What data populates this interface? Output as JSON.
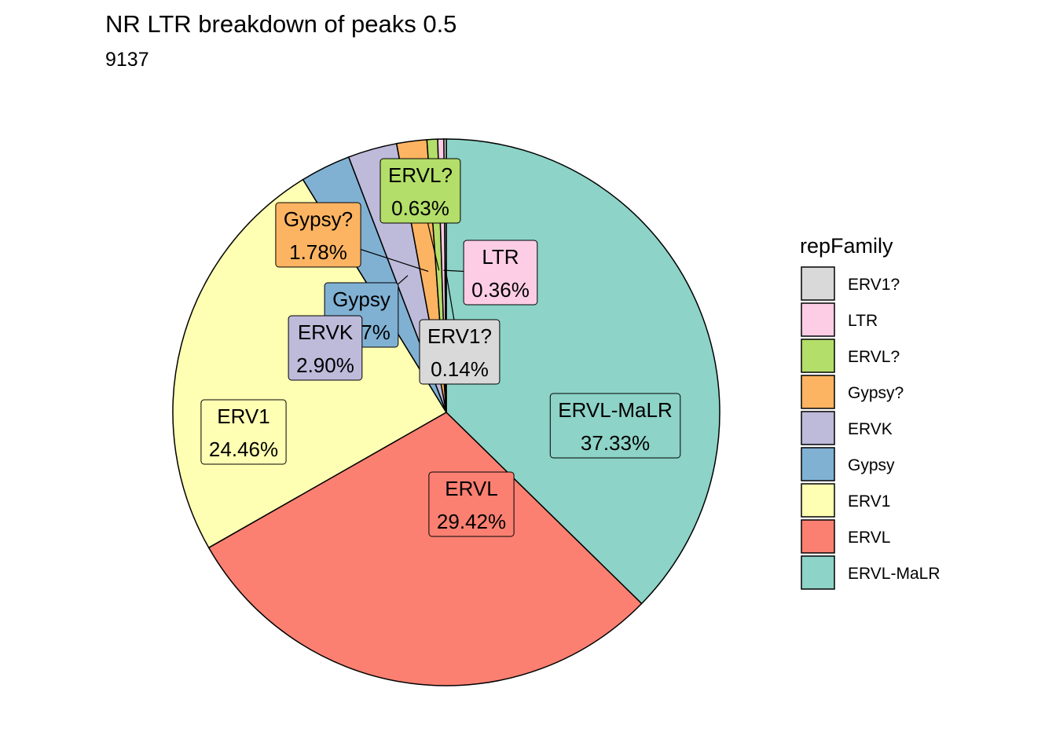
{
  "chart_data": {
    "type": "pie",
    "title": "NR LTR breakdown of peaks 0.5",
    "subtitle": "9137",
    "legend": {
      "title": "repFamily",
      "position": "right",
      "order": [
        "ERV1?",
        "LTR",
        "ERVL?",
        "Gypsy?",
        "ERVK",
        "Gypsy",
        "ERV1",
        "ERVL",
        "ERVL-MaLR"
      ]
    },
    "slices": [
      {
        "name": "ERVL-MaLR",
        "value": 37.33,
        "label": "37.33%",
        "color": "#8DD3C7"
      },
      {
        "name": "ERVL",
        "value": 29.42,
        "label": "29.42%",
        "color": "#FB8072"
      },
      {
        "name": "ERV1",
        "value": 24.46,
        "label": "24.46%",
        "color": "#FFFFB3"
      },
      {
        "name": "Gypsy",
        "value": 2.97,
        "label": "2.97%",
        "color": "#80B1D3"
      },
      {
        "name": "ERVK",
        "value": 2.9,
        "label": "2.90%",
        "color": "#BEBADA"
      },
      {
        "name": "Gypsy?",
        "value": 1.78,
        "label": "1.78%",
        "color": "#FDB462"
      },
      {
        "name": "ERVL?",
        "value": 0.63,
        "label": "0.63%",
        "color": "#B3DE69"
      },
      {
        "name": "LTR",
        "value": 0.36,
        "label": "0.36%",
        "color": "#FCCDE5"
      },
      {
        "name": "ERV1?",
        "value": 0.14,
        "label": "0.14%",
        "color": "#D9D9D9"
      }
    ]
  }
}
